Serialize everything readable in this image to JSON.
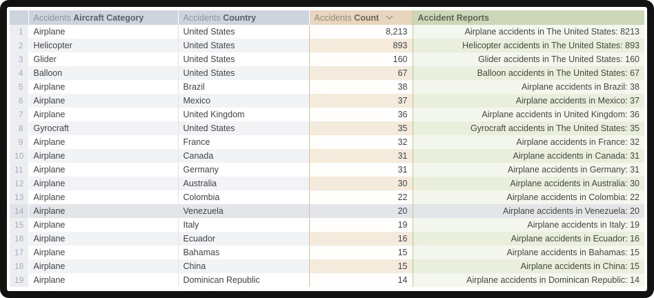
{
  "table": {
    "columns": [
      {
        "prefix": "Accidents",
        "label": "Aircraft Category"
      },
      {
        "prefix": "Accidents",
        "label": "Country"
      },
      {
        "prefix": "Accidents",
        "label": "Count",
        "sort": "desc",
        "sort_icon": "chevron-down"
      },
      {
        "prefix": "",
        "label": "Accident Reports"
      }
    ],
    "rows": [
      {
        "num": "1",
        "category": "Airplane",
        "country": "United States",
        "count": "8,213",
        "report": "Airplane accidents in The United States: 8213"
      },
      {
        "num": "2",
        "category": "Helicopter",
        "country": "United States",
        "count": "893",
        "report": "Helicopter accidents in The United States: 893"
      },
      {
        "num": "3",
        "category": "Glider",
        "country": "United States",
        "count": "160",
        "report": "Glider accidents in The United States: 160"
      },
      {
        "num": "4",
        "category": "Balloon",
        "country": "United States",
        "count": "67",
        "report": "Balloon accidents in The United States: 67"
      },
      {
        "num": "5",
        "category": "Airplane",
        "country": "Brazil",
        "count": "38",
        "report": "Airplane accidents in Brazil: 38"
      },
      {
        "num": "6",
        "category": "Airplane",
        "country": "Mexico",
        "count": "37",
        "report": "Airplane accidents in Mexico: 37"
      },
      {
        "num": "7",
        "category": "Airplane",
        "country": "United Kingdom",
        "count": "36",
        "report": "Airplane accidents in United Kingdom: 36"
      },
      {
        "num": "8",
        "category": "Gyrocraft",
        "country": "United States",
        "count": "35",
        "report": "Gyrocraft accidents in The United States: 35"
      },
      {
        "num": "9",
        "category": "Airplane",
        "country": "France",
        "count": "32",
        "report": "Airplane accidents in France: 32"
      },
      {
        "num": "10",
        "category": "Airplane",
        "country": "Canada",
        "count": "31",
        "report": "Airplane accidents in Canada: 31"
      },
      {
        "num": "11",
        "category": "Airplane",
        "country": "Germany",
        "count": "31",
        "report": "Airplane accidents in Germany: 31"
      },
      {
        "num": "12",
        "category": "Airplane",
        "country": "Australia",
        "count": "30",
        "report": "Airplane accidents in Australia: 30"
      },
      {
        "num": "13",
        "category": "Airplane",
        "country": "Colombia",
        "count": "22",
        "report": "Airplane accidents in Colombia: 22"
      },
      {
        "num": "14",
        "category": "Airplane",
        "country": "Venezuela",
        "count": "20",
        "report": "Airplane accidents in Venezuela: 20"
      },
      {
        "num": "15",
        "category": "Airplane",
        "country": "Italy",
        "count": "19",
        "report": "Airplane accidents in Italy: 19"
      },
      {
        "num": "16",
        "category": "Airplane",
        "country": "Ecuador",
        "count": "16",
        "report": "Airplane accidents in Ecuador: 16"
      },
      {
        "num": "17",
        "category": "Airplane",
        "country": "Bahamas",
        "count": "15",
        "report": "Airplane accidents in Bahamas: 15"
      },
      {
        "num": "18",
        "category": "Airplane",
        "country": "China",
        "count": "15",
        "report": "Airplane accidents in China: 15"
      },
      {
        "num": "19",
        "category": "Airplane",
        "country": "Dominican Republic",
        "count": "14",
        "report": "Airplane accidents in Dominican Republic: 14"
      }
    ],
    "highlighted_row": 14
  },
  "colors": {
    "header_blue_gray": "#ced4dd",
    "header_tan": "#e7d5bd",
    "header_green": "#ccd6b9",
    "count_stripe": "#f4ebdc",
    "report_stripe": "#e9efdc",
    "highlight": "#e3e5e8",
    "frame": "#121212"
  }
}
